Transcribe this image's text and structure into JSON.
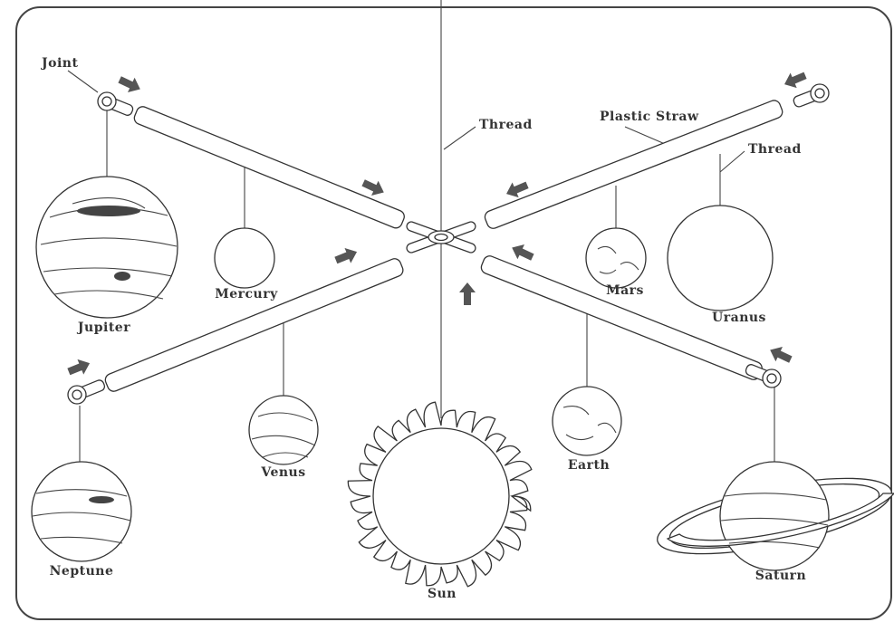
{
  "labels": {
    "joint": "Joint",
    "thread_center": "Thread",
    "plastic_straw": "Plastic Straw",
    "thread_right": "Thread"
  },
  "planets": [
    "Jupiter",
    "Mercury",
    "Venus",
    "Neptune",
    "Sun",
    "Earth",
    "Mars",
    "Uranus",
    "Saturn"
  ]
}
